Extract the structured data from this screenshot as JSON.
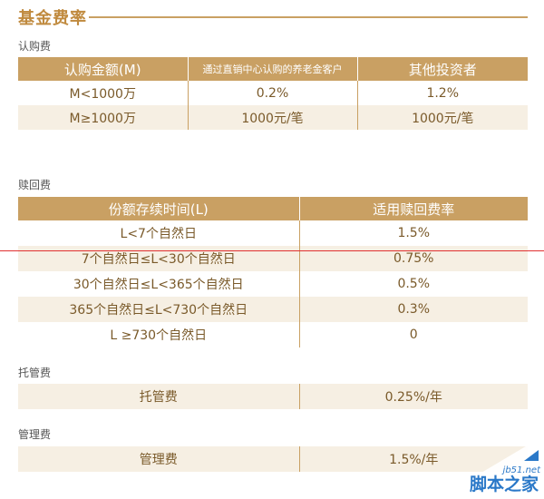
{
  "title": "基金费率",
  "subscription": {
    "label": "认购费",
    "headers": [
      "认购金额(M)",
      "通过直销中心认购的养老金客户",
      "其他投资者"
    ],
    "rows": [
      [
        "M<1000万",
        "0.2%",
        "1.2%"
      ],
      [
        "M≥1000万",
        "1000元/笔",
        "1000元/笔"
      ]
    ]
  },
  "redemption": {
    "label": "赎回费",
    "headers": [
      "份额存续时间(L)",
      "适用赎回费率"
    ],
    "rows": [
      [
        "L<7个自然日",
        "1.5%"
      ],
      [
        "7个自然日≤L<30个自然日",
        "0.75%"
      ],
      [
        "30个自然日≤L<365个自然日",
        "0.5%"
      ],
      [
        "365个自然日≤L<730个自然日",
        "0.3%"
      ],
      [
        "L ≥730个自然日",
        "0"
      ]
    ]
  },
  "custody": {
    "label": "托管费",
    "name": "托管费",
    "value": "0.25%/年"
  },
  "management": {
    "label": "管理费",
    "name": "管理费",
    "value": "1.5%/年"
  },
  "watermark": {
    "url": "jb51.net",
    "name": "脚本之家"
  },
  "colors": {
    "accent": "#c9a063",
    "tint": "#f6efe3",
    "title": "#c08a3e",
    "annotation_line": "#e03030",
    "watermark": "#2a78c8"
  }
}
